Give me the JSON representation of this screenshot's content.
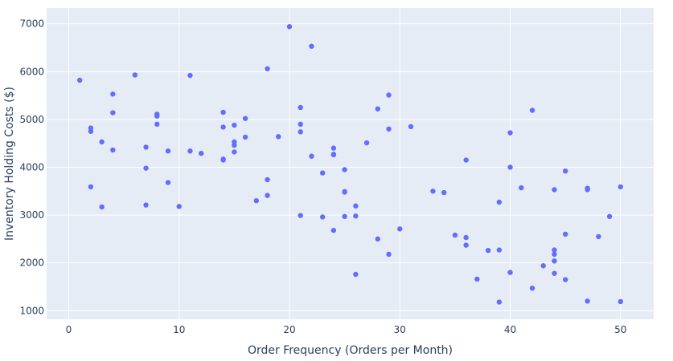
{
  "chart_data": {
    "type": "scatter",
    "title": "",
    "xlabel": "Order Frequency (Orders per Month)",
    "ylabel": "Inventory Holding Costs ($)",
    "xlim": [
      -2,
      53
    ],
    "ylim": [
      820,
      7330
    ],
    "x_ticks": [
      0,
      10,
      20,
      30,
      40,
      50
    ],
    "y_ticks": [
      1000,
      2000,
      3000,
      4000,
      5000,
      6000,
      7000
    ],
    "grid": true,
    "legend": "none",
    "colors": {
      "plot_bg": "#e5ecf6",
      "grid": "#ffffff",
      "marker": "#636efa",
      "text": "#2a3f5f"
    },
    "series": [
      {
        "x": [
          1,
          2,
          2,
          2,
          3,
          3,
          4,
          4,
          4,
          6,
          7,
          7,
          7,
          8,
          8,
          8,
          9,
          9,
          10,
          11,
          11,
          12,
          14,
          14,
          14,
          14,
          15,
          15,
          15,
          15,
          16,
          16,
          17,
          18,
          18,
          18,
          19,
          20,
          21,
          21,
          21,
          21,
          22,
          22,
          23,
          23,
          24,
          24,
          24,
          24,
          25,
          25,
          25,
          25,
          26,
          26,
          26,
          27,
          28,
          28,
          29,
          29,
          29,
          30,
          31,
          33,
          34,
          35,
          36,
          36,
          36,
          37,
          38,
          39,
          39,
          39,
          40,
          40,
          40,
          41,
          42,
          42,
          43,
          44,
          44,
          44,
          44,
          44,
          44,
          45,
          45,
          45,
          47,
          47,
          47,
          48,
          49,
          50,
          50
        ],
        "y": [
          5820,
          4820,
          4750,
          3590,
          4530,
          3170,
          5530,
          5140,
          4360,
          5930,
          4420,
          3980,
          3210,
          5110,
          5070,
          4900,
          4340,
          3680,
          3180,
          5920,
          4340,
          4290,
          5150,
          4840,
          4170,
          4150,
          4880,
          4530,
          4460,
          4320,
          5020,
          4630,
          3300,
          6060,
          3740,
          3410,
          4640,
          6940,
          5250,
          4900,
          4740,
          2990,
          6530,
          4230,
          3880,
          2960,
          4400,
          4270,
          4260,
          2680,
          3950,
          3490,
          3480,
          2970,
          3190,
          2980,
          1760,
          4510,
          5220,
          2500,
          5510,
          4800,
          2180,
          2710,
          4850,
          3500,
          3470,
          2580,
          4150,
          2530,
          2370,
          1660,
          2260,
          3270,
          2270,
          1180,
          4720,
          4000,
          1800,
          3570,
          5190,
          1470,
          1940,
          3530,
          2270,
          2180,
          2040,
          1780,
          2040,
          3920,
          2600,
          1650,
          3560,
          3530,
          1200,
          2550,
          2970,
          3590,
          1190
        ]
      }
    ]
  }
}
